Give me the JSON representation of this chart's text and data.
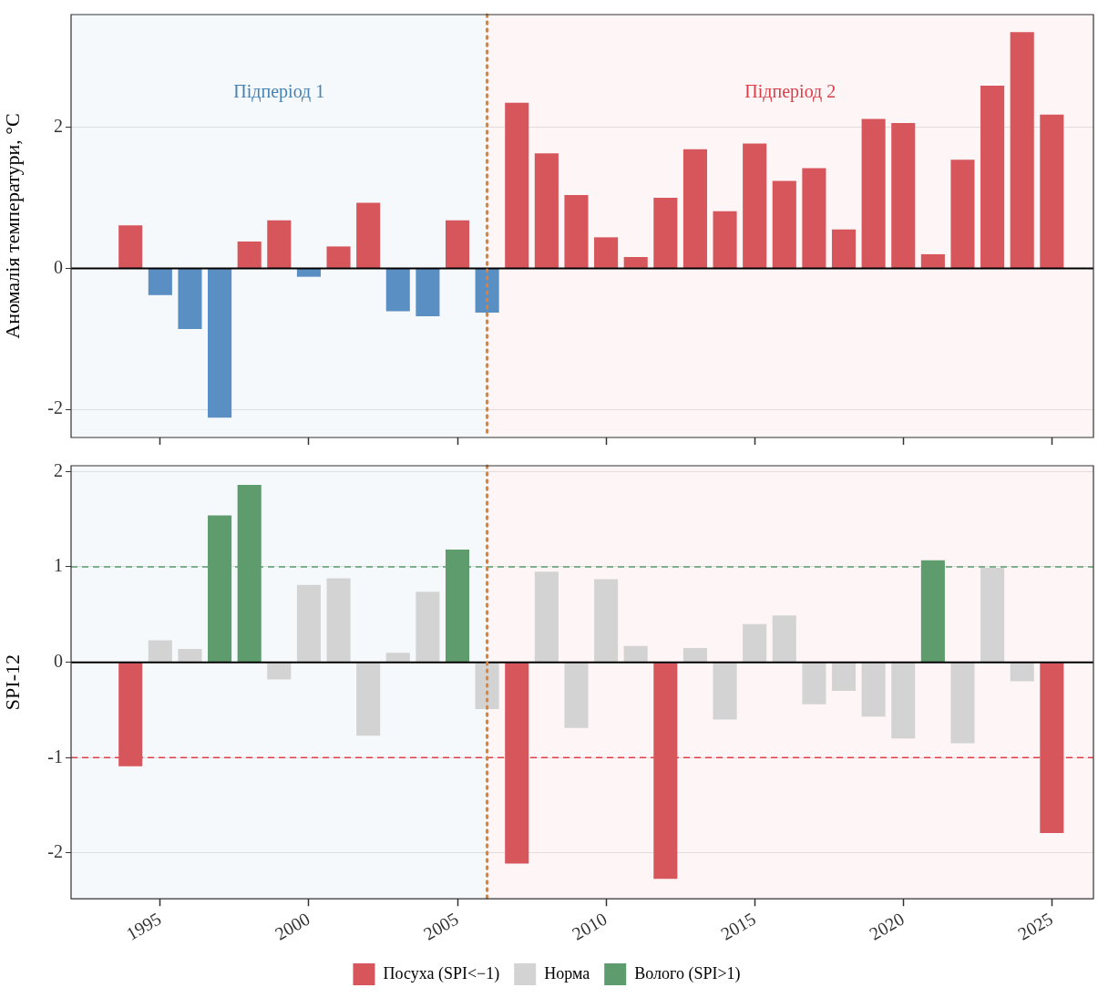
{
  "chart_data": [
    {
      "type": "bar",
      "ylabel": "Аномалія температури, °C",
      "x": [
        1994,
        1995,
        1996,
        1997,
        1998,
        1999,
        2000,
        2001,
        2002,
        2003,
        2004,
        2005,
        2006,
        2007,
        2008,
        2009,
        2010,
        2011,
        2012,
        2013,
        2014,
        2015,
        2016,
        2017,
        2018,
        2019,
        2020,
        2021,
        2022,
        2023,
        2024,
        2025
      ],
      "values": [
        0.61,
        -0.38,
        -0.86,
        -2.12,
        0.38,
        0.68,
        -0.12,
        0.31,
        0.93,
        -0.61,
        -0.68,
        0.68,
        -0.63,
        2.35,
        1.63,
        1.04,
        0.44,
        0.16,
        1.0,
        1.69,
        0.81,
        1.77,
        1.24,
        1.42,
        0.55,
        2.12,
        2.06,
        0.2,
        1.54,
        2.59,
        3.35,
        2.18
      ],
      "colors": [
        "#d7565b",
        "#5a8fc3",
        "#5a8fc3",
        "#5a8fc3",
        "#d7565b",
        "#d7565b",
        "#5a8fc3",
        "#d7565b",
        "#d7565b",
        "#5a8fc3",
        "#5a8fc3",
        "#d7565b",
        "#5a8fc3",
        "#d7565b",
        "#d7565b",
        "#d7565b",
        "#d7565b",
        "#d7565b",
        "#d7565b",
        "#d7565b",
        "#d7565b",
        "#d7565b",
        "#d7565b",
        "#d7565b",
        "#d7565b",
        "#d7565b",
        "#d7565b",
        "#d7565b",
        "#d7565b",
        "#d7565b",
        "#d7565b",
        "#d7565b"
      ],
      "xlim": [
        1992,
        2026.4
      ],
      "xticks": [
        1995,
        2000,
        2005,
        2010,
        2015,
        2020,
        2025
      ],
      "ylim": [
        -2.4,
        3.6
      ],
      "yticks": [
        -2,
        0,
        2
      ],
      "tick_labels": "y",
      "grid": "y",
      "legend": false,
      "bands": [
        {
          "axis": "x",
          "from": 1992,
          "to": 2006,
          "label": "Підперіод 1",
          "color": "#4682b4"
        },
        {
          "axis": "x",
          "from": 2006,
          "to": 2026.4,
          "label": "Підперіод 2",
          "color": "#d9404a"
        }
      ],
      "ref_lines": [
        {
          "axis": "y",
          "value": 0,
          "color": "#000000",
          "line_style": "solid"
        },
        {
          "axis": "x",
          "value": 2006,
          "color": "#d9843a",
          "line_style": "dotted"
        }
      ]
    },
    {
      "type": "bar",
      "ylabel": "SPI-12",
      "x": [
        1994,
        1995,
        1996,
        1997,
        1998,
        1999,
        2000,
        2001,
        2002,
        2003,
        2004,
        2005,
        2006,
        2007,
        2008,
        2009,
        2010,
        2011,
        2012,
        2013,
        2014,
        2015,
        2016,
        2017,
        2018,
        2019,
        2020,
        2021,
        2022,
        2023,
        2024,
        2025
      ],
      "series": [
        {
          "name": "Посуха (SPI<−1)",
          "color": "#d7565b",
          "values": [
            -1.09,
            null,
            null,
            null,
            null,
            null,
            null,
            null,
            null,
            null,
            null,
            null,
            null,
            -2.11,
            null,
            null,
            null,
            null,
            -2.27,
            null,
            null,
            null,
            null,
            null,
            null,
            null,
            null,
            null,
            null,
            null,
            null,
            -1.79
          ]
        },
        {
          "name": "Норма",
          "color": "#d3d3d3",
          "values": [
            null,
            0.23,
            0.14,
            null,
            null,
            -0.18,
            0.81,
            0.88,
            -0.77,
            0.1,
            0.74,
            null,
            -0.49,
            null,
            0.95,
            -0.69,
            0.87,
            0.17,
            null,
            0.15,
            -0.6,
            0.4,
            0.49,
            -0.44,
            -0.3,
            -0.57,
            -0.8,
            null,
            -0.85,
            0.99,
            -0.2,
            null
          ]
        },
        {
          "name": "Волого (SPI>1)",
          "color": "#5e9c6e",
          "values": [
            null,
            null,
            null,
            1.54,
            1.86,
            null,
            null,
            null,
            null,
            null,
            null,
            1.18,
            null,
            null,
            null,
            null,
            null,
            null,
            null,
            null,
            null,
            null,
            null,
            null,
            null,
            null,
            null,
            1.07,
            null,
            null,
            null,
            null
          ]
        }
      ],
      "xlim": [
        1992,
        2026.4
      ],
      "xticks": [
        1995,
        2000,
        2005,
        2010,
        2015,
        2020,
        2025
      ],
      "ylim": [
        -2.48,
        2.06
      ],
      "yticks": [
        -2,
        -1,
        0,
        1,
        2
      ],
      "grid": "y",
      "legend": "bottom",
      "bands": [
        {
          "axis": "x",
          "from": 1992,
          "to": 2006,
          "color": "#4682b4"
        },
        {
          "axis": "x",
          "from": 2006,
          "to": 2026.4,
          "color": "#d9404a"
        }
      ],
      "ref_lines": [
        {
          "axis": "y",
          "value": 1,
          "color": "#5e9c6e",
          "line_style": "dashed"
        },
        {
          "axis": "y",
          "value": -1,
          "color": "#d9404a",
          "line_style": "dashed"
        },
        {
          "axis": "y",
          "value": 0,
          "color": "#000000",
          "line_style": "solid"
        },
        {
          "axis": "x",
          "value": 2006,
          "color": "#d9843a",
          "line_style": "dotted"
        }
      ]
    }
  ]
}
